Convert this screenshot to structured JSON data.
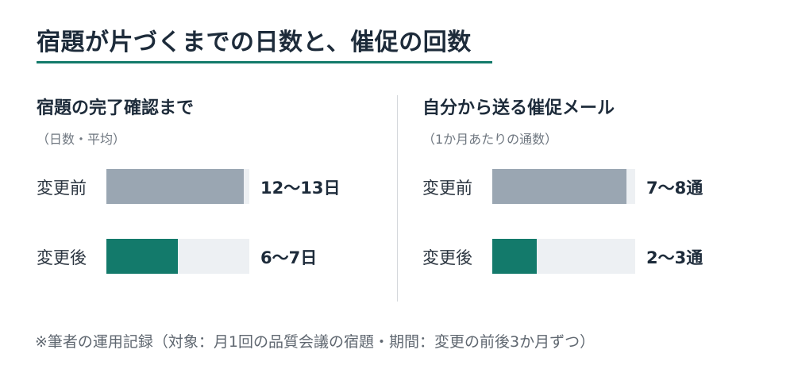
{
  "title": "宿題が片づくまでの日数と、催促の回数",
  "footnote": "※筆者の運用記録（対象：月1回の品質会議の宿題・期間：変更の前後3か月ずつ）",
  "colors": {
    "accent": "#137a6b",
    "before": "#9aa6b2",
    "after": "#137a6b",
    "track": "#edf0f3"
  },
  "chart_data": [
    {
      "type": "bar",
      "title": "宿題の完了確認まで",
      "subtitle": "（日数・平均）",
      "categories": [
        "変更前",
        "変更後"
      ],
      "values": [
        12.5,
        6.5
      ],
      "value_labels": [
        "12〜13日",
        "6〜7日"
      ],
      "xlim": [
        0,
        13
      ]
    },
    {
      "type": "bar",
      "title": "自分から送る催促メール",
      "subtitle": "（1か月あたりの通数）",
      "categories": [
        "変更前",
        "変更後"
      ],
      "values": [
        7.5,
        2.5
      ],
      "value_labels": [
        "7〜8通",
        "2〜3通"
      ],
      "xlim": [
        0,
        8
      ]
    }
  ]
}
